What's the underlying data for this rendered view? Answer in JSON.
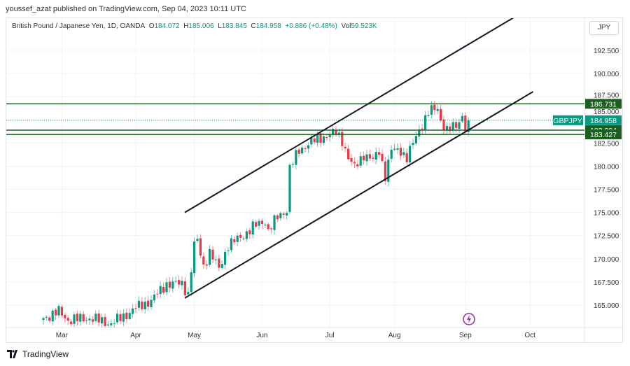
{
  "publish_info": "youssef_azat published on TradingView.com, Sep 04, 2023 10:11 UTC",
  "legend": {
    "symbol_desc": "British Pound / Japanese Yen, 1D, OANDA",
    "o_label": "O",
    "o": "184.072",
    "h_label": "H",
    "h": "185.006",
    "l_label": "L",
    "l": "183.845",
    "c_label": "C",
    "c": "184.958",
    "change": "+0.886 (+0.48%)",
    "vol_label": "Vol",
    "vol": "59.523K"
  },
  "currency_button": "JPY",
  "footer_brand": "TradingView",
  "colors": {
    "up": "#089981",
    "down": "#f23645",
    "level": "#1b5e20",
    "trend": "#131722"
  },
  "chart_data": {
    "type": "candlestick",
    "symbol": "GBPJPY",
    "last_price": 184.958,
    "last_price_label": "184.958",
    "ylim": [
      162.5,
      195.5
    ],
    "y_ticks": [
      "165.000",
      "167.500",
      "170.000",
      "172.500",
      "175.000",
      "177.500",
      "180.000",
      "182.500",
      "185.000",
      "187.500",
      "190.000",
      "192.500"
    ],
    "x_ticks": [
      {
        "label": "Mar",
        "bar": 6
      },
      {
        "label": "Apr",
        "bar": 30
      },
      {
        "label": "May",
        "bar": 49
      },
      {
        "label": "Jun",
        "bar": 71
      },
      {
        "label": "Jul",
        "bar": 93
      },
      {
        "label": "Aug",
        "bar": 114
      },
      {
        "label": "Sep",
        "bar": 137
      },
      {
        "label": "Oct",
        "bar": 158
      }
    ],
    "close_path": [
      [
        0,
        163.6
      ],
      [
        5,
        164.3
      ],
      [
        8,
        163.4
      ],
      [
        15,
        163.6
      ],
      [
        22,
        163
      ],
      [
        27,
        164
      ],
      [
        30,
        164.7
      ],
      [
        35,
        165.5
      ],
      [
        40,
        167.3
      ],
      [
        45,
        167.3
      ],
      [
        47,
        166.2
      ],
      [
        49,
        171.5
      ],
      [
        50,
        171.9
      ],
      [
        52,
        169.2
      ],
      [
        54,
        170.7
      ],
      [
        57,
        168.9
      ],
      [
        60,
        171.5
      ],
      [
        64,
        172.3
      ],
      [
        68,
        173.4
      ],
      [
        70,
        173.8
      ],
      [
        72,
        174.1
      ],
      [
        73,
        173
      ],
      [
        76,
        174.5
      ],
      [
        79,
        175.3
      ],
      [
        80,
        179.8
      ],
      [
        83,
        181.7
      ],
      [
        86,
        182.45
      ],
      [
        91,
        183.2
      ],
      [
        95,
        183.6
      ],
      [
        97,
        182.8
      ],
      [
        99,
        180.9
      ],
      [
        101,
        179.8
      ],
      [
        104,
        181.3
      ],
      [
        107,
        180.6
      ],
      [
        109,
        181.7
      ],
      [
        111,
        179
      ],
      [
        113,
        181.7
      ],
      [
        116,
        181.7
      ],
      [
        118,
        180.9
      ],
      [
        120,
        182.45
      ],
      [
        122,
        183.9
      ],
      [
        125,
        185.85
      ],
      [
        128,
        186.2
      ],
      [
        129,
        185
      ],
      [
        131,
        183.9
      ],
      [
        134,
        184.3
      ],
      [
        136,
        185.5
      ],
      [
        137,
        184.2
      ],
      [
        138,
        184.958
      ]
    ],
    "horizontal_levels": [
      {
        "price": 186.731,
        "label": "186.731"
      },
      {
        "price": 183.884,
        "label": "183.884"
      },
      {
        "price": 183.427,
        "label": "183.427"
      }
    ],
    "trend_lines": [
      {
        "name": "upper-channel",
        "from": [
          45.9,
          175.0
        ],
        "to": [
          154,
          196.3
        ]
      },
      {
        "name": "lower-channel",
        "from": [
          45.9,
          165.76
        ],
        "to": [
          159,
          188.04
        ]
      }
    ]
  }
}
